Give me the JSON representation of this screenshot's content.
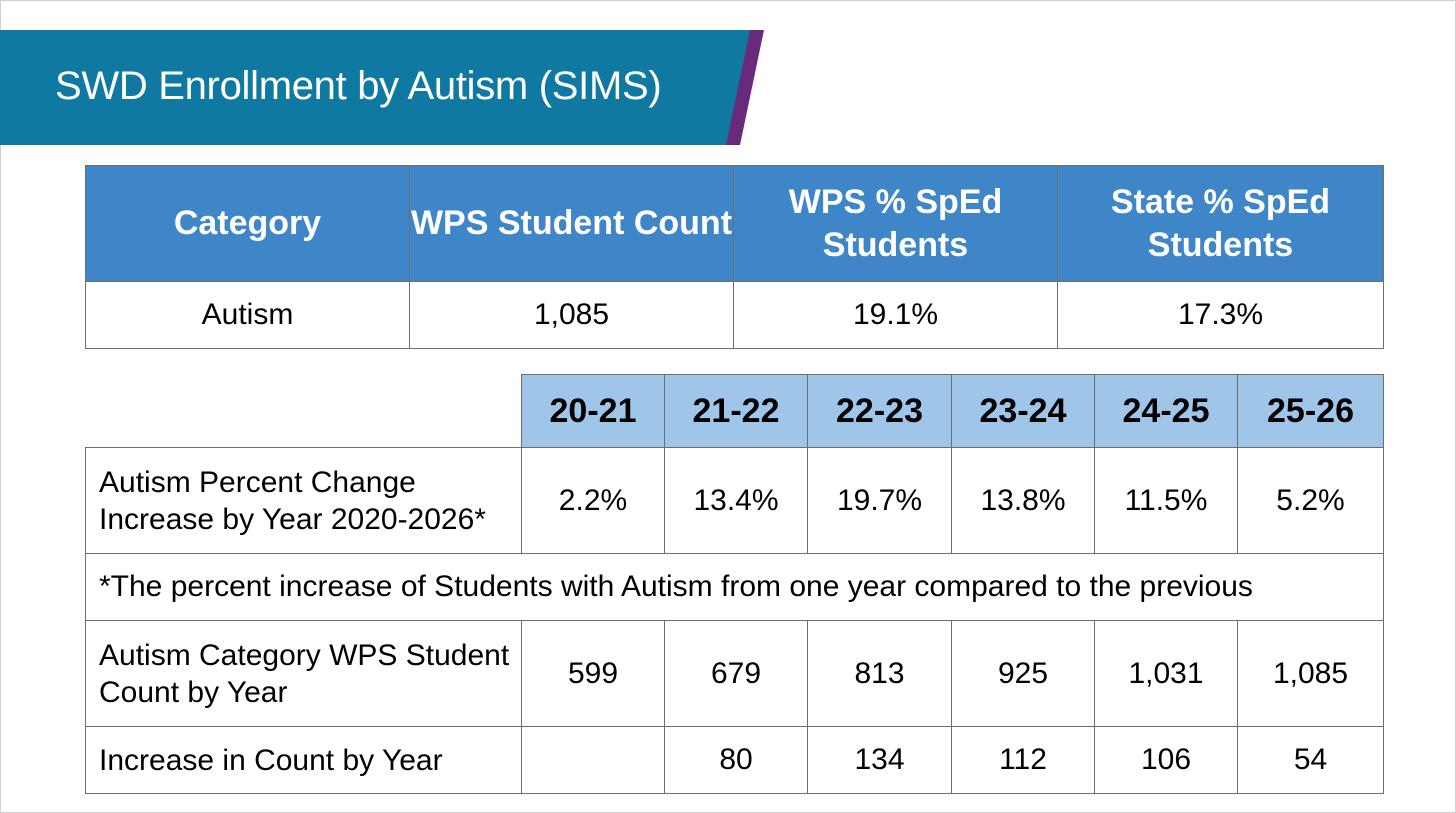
{
  "title": "SWD Enrollment by Autism (SIMS)",
  "colors": {
    "title_bar": "#1079a1",
    "title_accent": "#6a2a7c",
    "summary_header": "#3f86c9",
    "year_header": "#9fc6e8"
  },
  "summary": {
    "headers": {
      "category": "Category",
      "wps_count": "WPS Student Count",
      "wps_pct": "WPS % SpEd Students",
      "state_pct": "State % SpEd Students"
    },
    "row": {
      "category": "Autism",
      "wps_count": "1,085",
      "wps_pct": "19.1%",
      "state_pct": "17.3%"
    }
  },
  "detail": {
    "years": [
      "20-21",
      "21-22",
      "22-23",
      "23-24",
      "24-25",
      "25-26"
    ],
    "pct_change": {
      "label": "Autism Percent Change Increase by Year 2020-2026*",
      "values": [
        "2.2%",
        "13.4%",
        "19.7%",
        "13.8%",
        "11.5%",
        "5.2%"
      ]
    },
    "footnote": "*The percent increase of Students with Autism from one year compared to the previous",
    "count": {
      "label": "Autism Category WPS Student Count by Year",
      "values": [
        "599",
        "679",
        "813",
        "925",
        "1,031",
        "1,085"
      ]
    },
    "increase": {
      "label": "Increase in Count by Year",
      "values": [
        "",
        "80",
        "134",
        "112",
        "106",
        "54"
      ]
    }
  }
}
